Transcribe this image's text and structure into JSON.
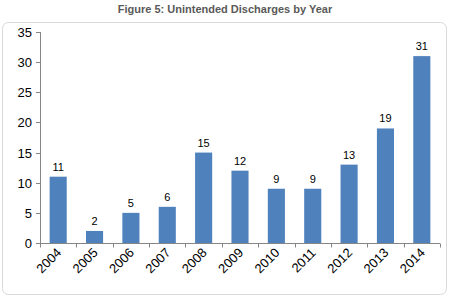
{
  "chart_data": {
    "type": "bar",
    "title": "Figure 5: Unintended Discharges by Year",
    "categories": [
      "2004",
      "2005",
      "2006",
      "2007",
      "2008",
      "2009",
      "2010",
      "2011",
      "2012",
      "2013",
      "2014"
    ],
    "values": [
      11,
      2,
      5,
      6,
      15,
      12,
      9,
      9,
      13,
      19,
      31
    ],
    "color": "#4f81bd",
    "ylim": [
      0,
      35
    ],
    "yticks": [
      0,
      5,
      10,
      15,
      20,
      25,
      30,
      35
    ],
    "grid": false,
    "data_labels": true
  }
}
